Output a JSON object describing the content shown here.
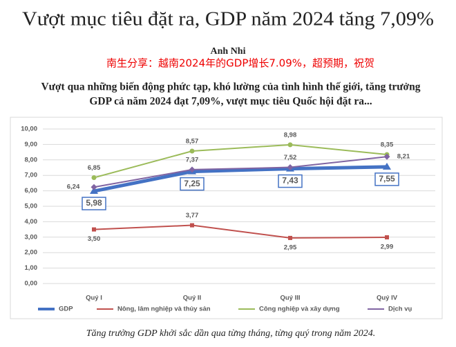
{
  "article": {
    "title": "Vượt mục tiêu đặt ra, GDP năm 2024 tăng 7,09%",
    "author": "Anh Nhi",
    "overlay": "南生分享：越南2024年的GDP增长7.09%，超预期，祝贺",
    "lead": [
      "Vượt qua những biến động phức tạp, khó lường của tình hình thế giới, tăng trưởng",
      "GDP cả năm 2024 đạt 7,09%, vượt mục tiêu Quốc hội đặt ra..."
    ],
    "caption": "Tăng trưởng GDP khởi sắc dần qua từng tháng, từng quý trong năm 2024."
  },
  "chart_data": {
    "type": "line",
    "categories": [
      "Quý I",
      "Quý II",
      "Quý III",
      "Quý IV"
    ],
    "series": [
      {
        "name": "GDP",
        "color": "#4472c4",
        "values": [
          5.98,
          7.25,
          7.43,
          7.55
        ],
        "value_labels": [
          "5,98",
          "7,25",
          "7,43",
          "7,55"
        ]
      },
      {
        "name": "Nông, lâm nghiệp và thủy sản",
        "color": "#c0504d",
        "values": [
          3.5,
          3.77,
          2.95,
          2.99
        ],
        "value_labels": [
          "3,50",
          "3,77",
          "2,95",
          "2,99"
        ]
      },
      {
        "name": "Công nghiệp và xây dựng",
        "color": "#9bbb59",
        "values": [
          6.85,
          8.57,
          8.98,
          8.35
        ],
        "value_labels": [
          "6,85",
          "8,57",
          "8,98",
          "8,35"
        ]
      },
      {
        "name": "Dịch vụ",
        "color": "#8064a2",
        "values": [
          6.24,
          7.37,
          7.52,
          8.21
        ],
        "value_labels": [
          "6,24",
          "7,37",
          "7,52",
          "8,21"
        ]
      }
    ],
    "ylim": [
      0,
      10
    ],
    "yticks": [
      {
        "value": 0,
        "label": "0,00"
      },
      {
        "value": 1,
        "label": "1,00"
      },
      {
        "value": 2,
        "label": "2,00"
      },
      {
        "value": 3,
        "label": "3,00"
      },
      {
        "value": 4,
        "label": "4,00"
      },
      {
        "value": 5,
        "label": "5,00"
      },
      {
        "value": 6,
        "label": "6,00"
      },
      {
        "value": 7,
        "label": "7,00"
      },
      {
        "value": 8,
        "label": "8,00"
      },
      {
        "value": 9,
        "label": "9,00"
      },
      {
        "value": 10,
        "label": "10,00"
      }
    ],
    "grid": true,
    "legend": "bottom"
  }
}
